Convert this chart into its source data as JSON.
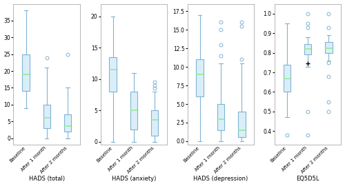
{
  "subplots": [
    {
      "title": "HADS (total)",
      "categories": [
        "Baseline",
        "After 1 month",
        "After 2 months"
      ],
      "boxes": [
        {
          "whislo": 9,
          "q1": 14,
          "med": 19,
          "q3": 25,
          "whishi": 38,
          "fliers": []
        },
        {
          "whislo": 0,
          "q1": 3,
          "med": 6,
          "q3": 10,
          "whishi": 21,
          "fliers": [
            24
          ]
        },
        {
          "whislo": 0,
          "q1": 2,
          "med": 3.5,
          "q3": 7,
          "whishi": 15,
          "fliers": [
            25
          ]
        }
      ],
      "ylim": [
        -2,
        40
      ],
      "yticks": [
        0,
        5,
        10,
        15,
        20,
        25,
        30,
        35
      ]
    },
    {
      "title": "HADS (anxiety)",
      "categories": [
        "Baseline",
        "After 1 month",
        "After 2 months"
      ],
      "boxes": [
        {
          "whislo": 0,
          "q1": 8,
          "med": 11.5,
          "q3": 13.5,
          "whishi": 20,
          "fliers": []
        },
        {
          "whislo": 0,
          "q1": 2,
          "med": 5,
          "q3": 8,
          "whishi": 11,
          "fliers": []
        },
        {
          "whislo": 0,
          "q1": 1,
          "med": 3.5,
          "q3": 5,
          "whishi": 8,
          "fliers": [
            8.5,
            9,
            9.5
          ]
        }
      ],
      "ylim": [
        -0.5,
        22
      ],
      "yticks": [
        0,
        5,
        10,
        15,
        20
      ]
    },
    {
      "title": "HADS (depression)",
      "categories": [
        "Baseline",
        "After 1 month",
        "After 2 months"
      ],
      "boxes": [
        {
          "whislo": 0,
          "q1": 6,
          "med": 9,
          "q3": 11,
          "whishi": 17,
          "fliers": []
        },
        {
          "whislo": 0,
          "q1": 1.5,
          "med": 3,
          "q3": 5,
          "whishi": 10.5,
          "fliers": [
            11.5,
            13,
            15,
            16
          ]
        },
        {
          "whislo": 0,
          "q1": 0.5,
          "med": 1.5,
          "q3": 4,
          "whishi": 10.5,
          "fliers": [
            11,
            15.5,
            16
          ]
        }
      ],
      "ylim": [
        -0.5,
        18.5
      ],
      "yticks": [
        0.0,
        2.5,
        5.0,
        7.5,
        10.0,
        12.5,
        15.0,
        17.5
      ]
    },
    {
      "title": "EQ5D5L",
      "categories": [
        "Baseline",
        "After 1 month",
        "After 2 months"
      ],
      "boxes": [
        {
          "whislo": 0.47,
          "q1": 0.6,
          "med": 0.67,
          "q3": 0.74,
          "whishi": 0.95,
          "fliers": [
            0.38
          ]
        },
        {
          "whislo": 0.73,
          "q1": 0.79,
          "med": 0.82,
          "q3": 0.845,
          "whishi": 0.88,
          "fliers": [
            0.38,
            0.5,
            0.93,
            0.95,
            1.0
          ]
        },
        {
          "whislo": 0.76,
          "q1": 0.8,
          "med": 0.825,
          "q3": 0.855,
          "whishi": 0.89,
          "fliers": [
            0.5,
            0.55,
            0.68,
            0.75,
            0.93,
            1.0
          ]
        }
      ],
      "ylim": [
        0.33,
        1.05
      ],
      "yticks": [
        0.4,
        0.5,
        0.6,
        0.7,
        0.8,
        0.9,
        1.0
      ],
      "mean_marker": [
        null,
        0.745,
        null
      ]
    }
  ],
  "box_facecolor": "#daeef9",
  "box_edgecolor": "#7fb3d3",
  "whisker_color": "#7fb3d3",
  "median_color": "#90ee90",
  "flier_color": "#7fb3d3",
  "background_color": "#ffffff",
  "fig_background": "#ffffff",
  "box_width": 0.35,
  "flier_markersize": 3.5,
  "tick_fontsize": 5.5,
  "xlabel_fontsize": 6.0,
  "xtick_fontsize": 5.0
}
